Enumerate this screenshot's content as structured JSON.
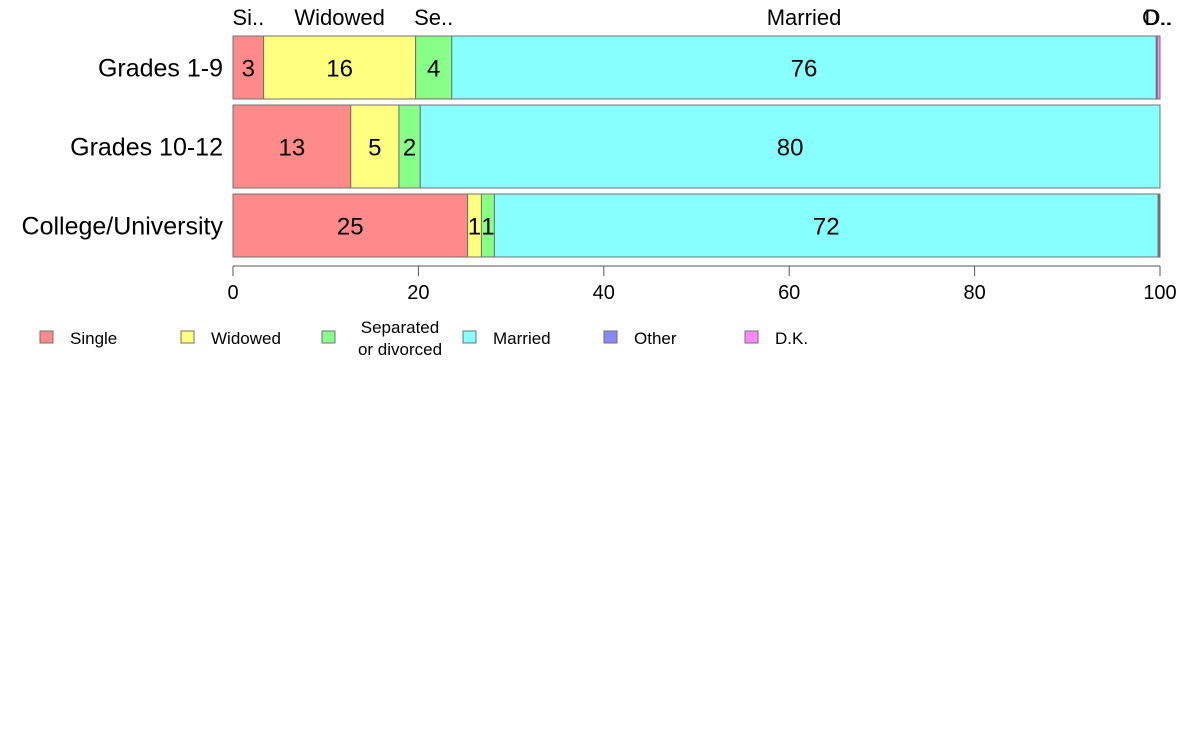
{
  "chart_data": {
    "type": "bar",
    "orientation": "horizontal",
    "stacked": true,
    "categories": [
      "Grades 1-9",
      "Grades 10-12",
      "College/University"
    ],
    "series": [
      {
        "name": "Single",
        "color": "#ff8a8a",
        "values": [
          3.3,
          12.7,
          25.3
        ],
        "labels": [
          "3",
          "13",
          "25"
        ]
      },
      {
        "name": "Widowed",
        "color": "#ffff80",
        "values": [
          16.4,
          5.2,
          1.5
        ],
        "labels": [
          "16",
          "5",
          "1"
        ]
      },
      {
        "name": "Separated or divorced",
        "color": "#88ff88",
        "values": [
          3.9,
          2.3,
          1.4
        ],
        "labels": [
          "4",
          "2",
          "1"
        ]
      },
      {
        "name": "Married",
        "color": "#88ffff",
        "values": [
          76.0,
          79.8,
          71.6
        ],
        "labels": [
          "76",
          "80",
          "72"
        ]
      },
      {
        "name": "Other",
        "color": "#8888ff",
        "values": [
          0.1,
          0.0,
          0.1
        ],
        "labels": [
          "",
          "",
          ""
        ]
      },
      {
        "name": "D.K.",
        "color": "#ff88ff",
        "values": [
          0.3,
          0.0,
          0.1
        ],
        "labels": [
          "",
          "",
          ""
        ]
      }
    ],
    "top_labels": [
      "Si..",
      "Widowed",
      "Se..",
      "Married",
      "O..",
      "D.."
    ],
    "xlim": [
      0,
      100
    ],
    "xticks": [
      0,
      20,
      40,
      60,
      80,
      100
    ],
    "grid": false,
    "legend": {
      "position": "bottom",
      "items": [
        {
          "lines": [
            "Single"
          ]
        },
        {
          "lines": [
            "Widowed"
          ]
        },
        {
          "lines": [
            "Separated",
            "or divorced"
          ]
        },
        {
          "lines": [
            "Married"
          ]
        },
        {
          "lines": [
            "Other"
          ]
        },
        {
          "lines": [
            "D.K."
          ]
        }
      ]
    }
  }
}
